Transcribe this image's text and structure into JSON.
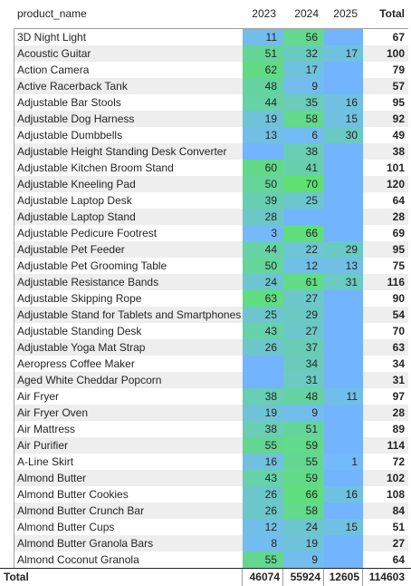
{
  "columns": {
    "name": "product_name",
    "y2023": "2023",
    "y2024": "2024",
    "y2025": "2025",
    "total": "Total"
  },
  "colors": {
    "empty_cell": "#73b4ff",
    "low": "#75b8ff",
    "high": "#5ee073",
    "alt_row": "#eeeeee"
  },
  "scale": {
    "min": 0,
    "max": 70
  },
  "rows": [
    {
      "name": "3D Night Light",
      "v2023": "11",
      "v2024": "56",
      "v2025": "",
      "total": "67"
    },
    {
      "name": "Acoustic Guitar",
      "v2023": "51",
      "v2024": "32",
      "v2025": "17",
      "total": "100"
    },
    {
      "name": "Action Camera",
      "v2023": "62",
      "v2024": "17",
      "v2025": "",
      "total": "79"
    },
    {
      "name": "Active Racerback Tank",
      "v2023": "48",
      "v2024": "9",
      "v2025": "",
      "total": "57"
    },
    {
      "name": "Adjustable Bar Stools",
      "v2023": "44",
      "v2024": "35",
      "v2025": "16",
      "total": "95"
    },
    {
      "name": "Adjustable Dog Harness",
      "v2023": "19",
      "v2024": "58",
      "v2025": "15",
      "total": "92"
    },
    {
      "name": "Adjustable Dumbbells",
      "v2023": "13",
      "v2024": "6",
      "v2025": "30",
      "total": "49"
    },
    {
      "name": "Adjustable Height Standing Desk Converter",
      "v2023": "",
      "v2024": "38",
      "v2025": "",
      "total": "38"
    },
    {
      "name": "Adjustable Kitchen Broom Stand",
      "v2023": "60",
      "v2024": "41",
      "v2025": "",
      "total": "101"
    },
    {
      "name": "Adjustable Kneeling Pad",
      "v2023": "50",
      "v2024": "70",
      "v2025": "",
      "total": "120"
    },
    {
      "name": "Adjustable Laptop Desk",
      "v2023": "39",
      "v2024": "25",
      "v2025": "",
      "total": "64"
    },
    {
      "name": "Adjustable Laptop Stand",
      "v2023": "28",
      "v2024": "",
      "v2025": "",
      "total": "28"
    },
    {
      "name": "Adjustable Pedicure Footrest",
      "v2023": "3",
      "v2024": "66",
      "v2025": "",
      "total": "69"
    },
    {
      "name": "Adjustable Pet Feeder",
      "v2023": "44",
      "v2024": "22",
      "v2025": "29",
      "total": "95"
    },
    {
      "name": "Adjustable Pet Grooming Table",
      "v2023": "50",
      "v2024": "12",
      "v2025": "13",
      "total": "75"
    },
    {
      "name": "Adjustable Resistance Bands",
      "v2023": "24",
      "v2024": "61",
      "v2025": "31",
      "total": "116"
    },
    {
      "name": "Adjustable Skipping Rope",
      "v2023": "63",
      "v2024": "27",
      "v2025": "",
      "total": "90"
    },
    {
      "name": "Adjustable Stand for Tablets and Smartphones",
      "v2023": "25",
      "v2024": "29",
      "v2025": "",
      "total": "54"
    },
    {
      "name": "Adjustable Standing Desk",
      "v2023": "43",
      "v2024": "27",
      "v2025": "",
      "total": "70"
    },
    {
      "name": "Adjustable Yoga Mat Strap",
      "v2023": "26",
      "v2024": "37",
      "v2025": "",
      "total": "63"
    },
    {
      "name": "Aeropress Coffee Maker",
      "v2023": "",
      "v2024": "34",
      "v2025": "",
      "total": "34"
    },
    {
      "name": "Aged White Cheddar Popcorn",
      "v2023": "",
      "v2024": "31",
      "v2025": "",
      "total": "31"
    },
    {
      "name": "Air Fryer",
      "v2023": "38",
      "v2024": "48",
      "v2025": "11",
      "total": "97"
    },
    {
      "name": "Air Fryer Oven",
      "v2023": "19",
      "v2024": "9",
      "v2025": "",
      "total": "28"
    },
    {
      "name": "Air Mattress",
      "v2023": "38",
      "v2024": "51",
      "v2025": "",
      "total": "89"
    },
    {
      "name": "Air Purifier",
      "v2023": "55",
      "v2024": "59",
      "v2025": "",
      "total": "114"
    },
    {
      "name": "A-Line Skirt",
      "v2023": "16",
      "v2024": "55",
      "v2025": "1",
      "total": "72"
    },
    {
      "name": "Almond Butter",
      "v2023": "43",
      "v2024": "59",
      "v2025": "",
      "total": "102"
    },
    {
      "name": "Almond Butter Cookies",
      "v2023": "26",
      "v2024": "66",
      "v2025": "16",
      "total": "108"
    },
    {
      "name": "Almond Butter Crunch Bar",
      "v2023": "26",
      "v2024": "58",
      "v2025": "",
      "total": "84"
    },
    {
      "name": "Almond Butter Cups",
      "v2023": "12",
      "v2024": "24",
      "v2025": "15",
      "total": "51"
    },
    {
      "name": "Almond Butter Granola Bars",
      "v2023": "8",
      "v2024": "19",
      "v2025": "",
      "total": "27"
    },
    {
      "name": "Almond Coconut Granola",
      "v2023": "55",
      "v2024": "9",
      "v2025": "",
      "total": "64"
    }
  ],
  "footer": {
    "label": "Total",
    "t2023": "46074",
    "t2024": "55924",
    "t2025": "12605",
    "total": "114603"
  }
}
